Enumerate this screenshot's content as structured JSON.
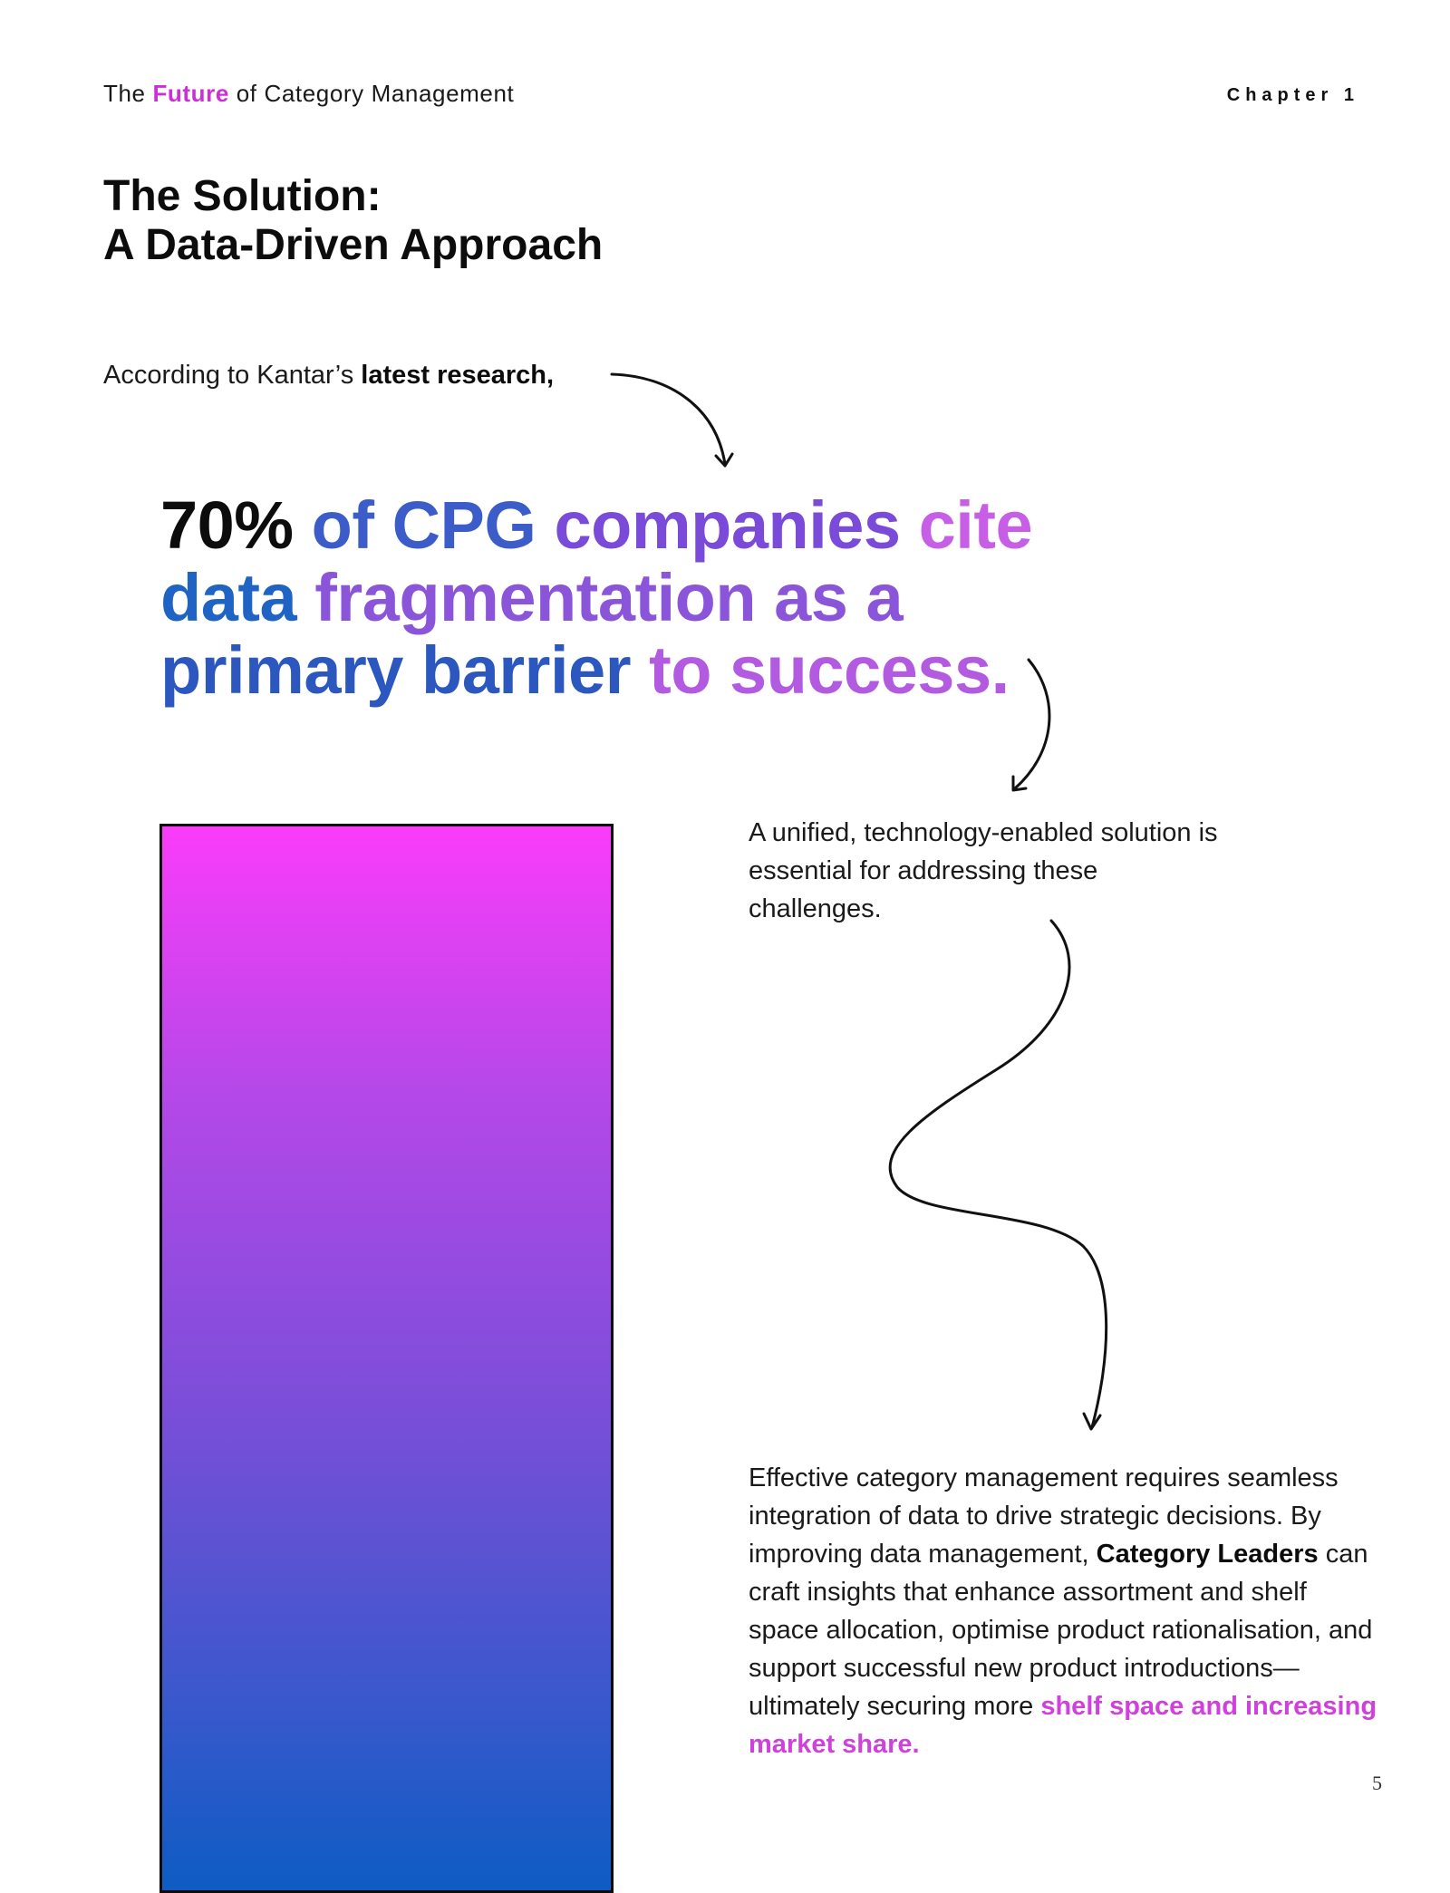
{
  "header": {
    "doc_title_prefix": "The ",
    "doc_title_accent": "Future",
    "doc_title_suffix": " of Category Management",
    "chapter": "Chapter 1"
  },
  "section": {
    "title_line1": "The Solution:",
    "title_line2": "A Data-Driven Approach"
  },
  "intro": {
    "text": "According to Kantar’s ",
    "bold": "latest research,"
  },
  "headline": {
    "stat": "70%",
    "part_of": "of ",
    "part_cpg": "CPG ",
    "part_companies": "companies",
    "part_cite": " cite",
    "part_data": "data ",
    "part_fragmentation": "fragmentation as a",
    "part_primary": "primary barrier ",
    "part_success": "to success."
  },
  "paragraph1": "A unified, technology-enabled solution is essential for addressing these challenges.",
  "paragraph2": {
    "text_a": "Effective category management requires seamless integration of data to drive strategic decisions. By improving data management, ",
    "bold": "Category Leaders",
    "text_b": " can craft insights that enhance assortment and shelf space allocation, optimise product rationalisation, and support successful new product introductions—ultimately securing more ",
    "highlight": "shelf space and increasing market share."
  },
  "page_number": "5",
  "colors": {
    "accent_pink": "#cc2fd6",
    "accent_blue": "#1f63c4",
    "accent_purple": "#7a4ad8"
  }
}
